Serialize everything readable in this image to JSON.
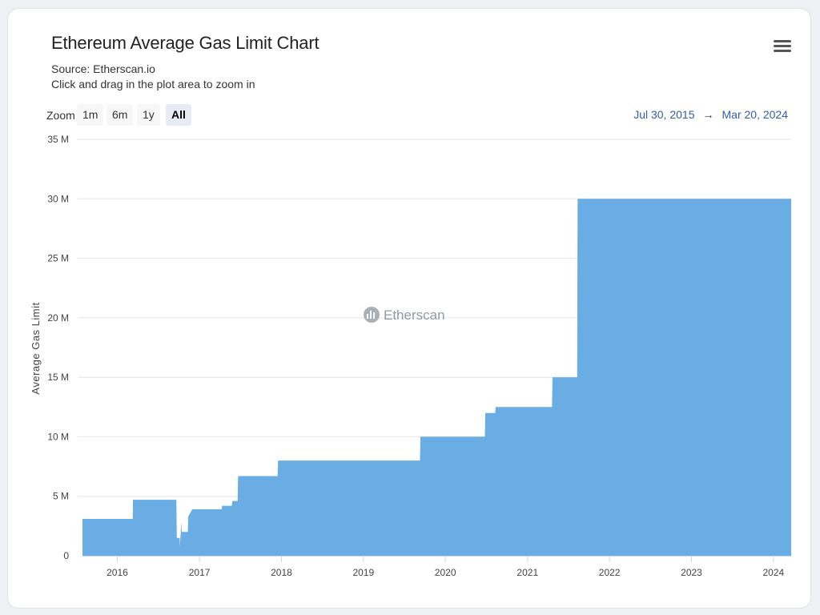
{
  "header": {
    "title": "Ethereum Average Gas Limit Chart",
    "source": "Source: Etherscan.io",
    "hint": "Click and drag in the plot area to zoom in"
  },
  "zoom": {
    "label": "Zoom",
    "buttons": [
      "1m",
      "6m",
      "1y",
      "All"
    ],
    "active": "All"
  },
  "range": {
    "from": "Jul 30, 2015",
    "arrow": "→",
    "to": "Mar 20, 2024"
  },
  "watermark": "Etherscan",
  "menu_icon": "hamburger-menu-icon",
  "colors": {
    "series": "#6aace4",
    "grid": "#e6e6e6",
    "range_text": "#335cad"
  },
  "chart_data": {
    "type": "area",
    "ylabel": "Average Gas Limit",
    "ylim": [
      0,
      35000000
    ],
    "yticks": [
      {
        "value": 0,
        "label": "0"
      },
      {
        "value": 5000000,
        "label": "5 M"
      },
      {
        "value": 10000000,
        "label": "10 M"
      },
      {
        "value": 15000000,
        "label": "15 M"
      },
      {
        "value": 20000000,
        "label": "20 M"
      },
      {
        "value": 25000000,
        "label": "25 M"
      },
      {
        "value": 30000000,
        "label": "30 M"
      },
      {
        "value": 35000000,
        "label": "35 M"
      }
    ],
    "xlim": [
      "2015-07-30",
      "2024-03-20"
    ],
    "xticks": [
      {
        "date": "2016-01-01",
        "label": "2016"
      },
      {
        "date": "2017-01-01",
        "label": "2017"
      },
      {
        "date": "2018-01-01",
        "label": "2018"
      },
      {
        "date": "2019-01-01",
        "label": "2019"
      },
      {
        "date": "2020-01-01",
        "label": "2020"
      },
      {
        "date": "2021-01-01",
        "label": "2021"
      },
      {
        "date": "2022-01-01",
        "label": "2022"
      },
      {
        "date": "2023-01-01",
        "label": "2023"
      },
      {
        "date": "2024-01-01",
        "label": "2024"
      }
    ],
    "grid": true,
    "legend": "none",
    "series": [
      {
        "points": [
          [
            "2015-07-30",
            3100000
          ],
          [
            "2016-03-10",
            3100000
          ],
          [
            "2016-03-11",
            4700000
          ],
          [
            "2016-09-20",
            4700000
          ],
          [
            "2016-09-22",
            1500000
          ],
          [
            "2016-10-05",
            1500000
          ],
          [
            "2016-10-06",
            800000
          ],
          [
            "2016-10-12",
            2800000
          ],
          [
            "2016-10-14",
            2000000
          ],
          [
            "2016-11-10",
            2000000
          ],
          [
            "2016-11-12",
            3300000
          ],
          [
            "2016-11-30",
            3900000
          ],
          [
            "2017-04-10",
            3900000
          ],
          [
            "2017-04-12",
            4200000
          ],
          [
            "2017-05-25",
            4200000
          ],
          [
            "2017-05-27",
            4600000
          ],
          [
            "2017-06-20",
            4600000
          ],
          [
            "2017-06-22",
            6700000
          ],
          [
            "2017-12-15",
            6700000
          ],
          [
            "2017-12-17",
            8000000
          ],
          [
            "2019-09-10",
            8000000
          ],
          [
            "2019-09-12",
            10000000
          ],
          [
            "2020-06-25",
            10000000
          ],
          [
            "2020-06-27",
            12000000
          ],
          [
            "2020-08-10",
            12000000
          ],
          [
            "2020-08-12",
            12500000
          ],
          [
            "2021-04-20",
            12500000
          ],
          [
            "2021-04-22",
            15000000
          ],
          [
            "2021-08-10",
            15000000
          ],
          [
            "2021-08-12",
            30000000
          ],
          [
            "2024-03-20",
            30000000
          ]
        ]
      }
    ]
  }
}
